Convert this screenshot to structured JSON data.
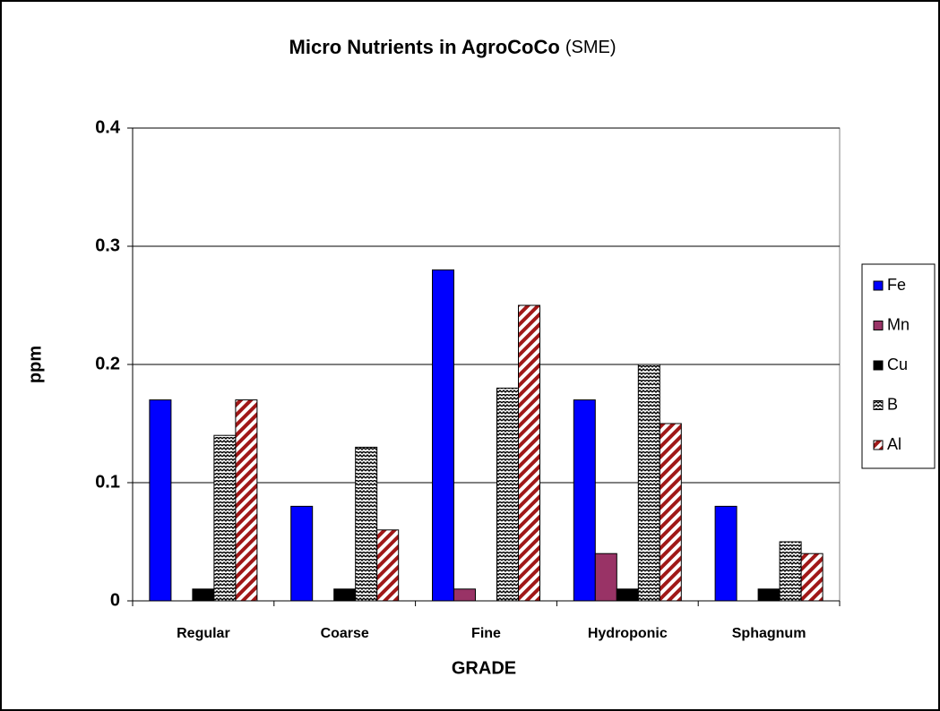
{
  "chart_data": {
    "type": "bar",
    "title": "Micro Nutrients in AgroCoCo",
    "subtitle": "(SME)",
    "x_label": "GRADE",
    "y_label": "ppm",
    "categories": [
      "Regular",
      "Coarse",
      "Fine",
      "Hydroponic",
      "Sphagnum"
    ],
    "series": [
      {
        "name": "Fe",
        "color": "#0000ff",
        "values": [
          0.17,
          0.08,
          0.28,
          0.17,
          0.08
        ]
      },
      {
        "name": "Mn",
        "color": "#993366",
        "values": [
          0,
          0,
          0.01,
          0.04,
          0
        ]
      },
      {
        "name": "Cu",
        "color": "#000000",
        "values": [
          0.01,
          0.01,
          0,
          0.01,
          0.01
        ]
      },
      {
        "name": "B",
        "color": "#000000",
        "pattern": "zigzag",
        "values": [
          0.14,
          0.13,
          0.18,
          0.2,
          0.05
        ]
      },
      {
        "name": "Al",
        "color": "#a01818",
        "pattern": "diagonal",
        "values": [
          0.17,
          0.06,
          0.25,
          0.15,
          0.04
        ]
      }
    ],
    "ylim": [
      0,
      0.4
    ],
    "yticks": [
      0,
      0.1,
      0.2,
      0.3,
      0.4
    ],
    "grid": true,
    "legend": "right"
  }
}
